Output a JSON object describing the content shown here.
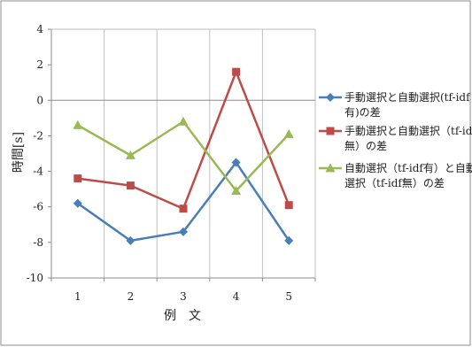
{
  "chart_data": {
    "type": "line",
    "title": "",
    "xlabel": "例　文",
    "ylabel": "時間[s]",
    "categories": [
      "1",
      "2",
      "3",
      "4",
      "5"
    ],
    "ylim": [
      -10,
      4
    ],
    "ytick_step": 2,
    "grid": "vertical",
    "legend_position": "right",
    "series": [
      {
        "name_lines": [
          "手動選択と自動選択(tf-idf",
          "有)の差"
        ],
        "color": "#4a7ebb",
        "marker": "diamond",
        "values": [
          -5.8,
          -7.9,
          -7.4,
          -3.5,
          -7.9
        ]
      },
      {
        "name_lines": [
          "手動選択と自動選択（tf-idf",
          "無）の差"
        ],
        "color": "#be4b48",
        "marker": "square",
        "values": [
          -4.4,
          -4.8,
          -6.1,
          1.6,
          -5.9
        ]
      },
      {
        "name_lines": [
          "自動選択（tf-idf有）と自動",
          "選択（tf-idf無）の差"
        ],
        "color": "#98b954",
        "marker": "triangle",
        "values": [
          -1.4,
          -3.1,
          -1.2,
          -5.1,
          -1.9
        ]
      }
    ]
  }
}
